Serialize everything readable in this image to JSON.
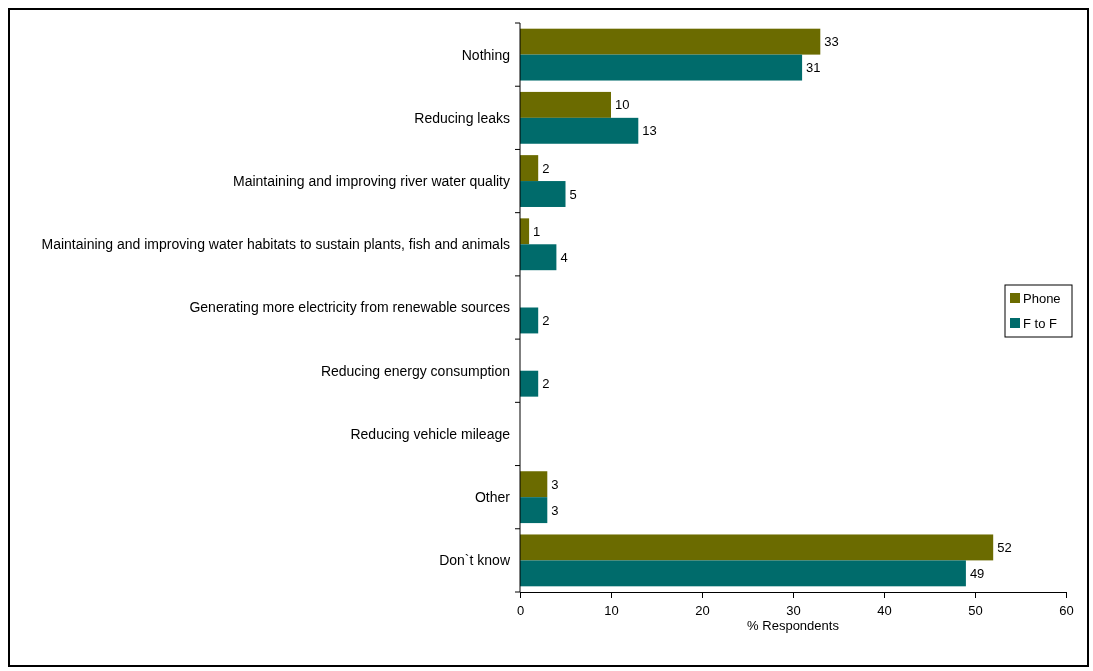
{
  "chart_data": {
    "type": "bar",
    "orientation": "horizontal",
    "categories": [
      "Nothing",
      "Reducing leaks",
      "Maintaining and improving river water quality",
      "Maintaining and improving water habitats to sustain plants, fish and animals",
      "Generating more electricity from renewable sources",
      "Reducing energy consumption",
      "Reducing vehicle mileage",
      "Other",
      "Don`t know"
    ],
    "series": [
      {
        "name": "Phone",
        "color": "#6b6b00",
        "values": [
          33,
          10,
          2,
          1,
          null,
          null,
          null,
          3,
          52
        ]
      },
      {
        "name": "F to F",
        "color": "#006b6b",
        "values": [
          31,
          13,
          5,
          4,
          2,
          2,
          null,
          3,
          49
        ]
      }
    ],
    "xlabel": "% Respondents",
    "xlim": [
      0,
      60
    ],
    "xticks": [
      0,
      10,
      20,
      30,
      40,
      50,
      60
    ],
    "data_labels": true,
    "legend": "right",
    "grid": false
  }
}
